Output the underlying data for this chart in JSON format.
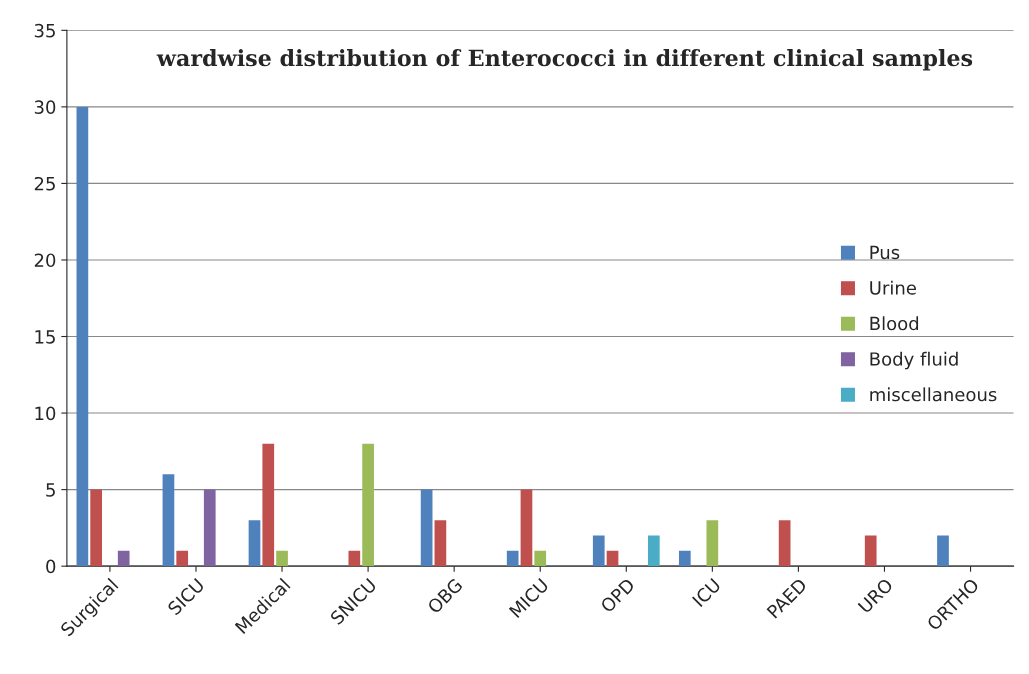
{
  "chart_data": {
    "type": "bar",
    "title": "wardwise distribution of Enterococci in different clinical samples",
    "categories": [
      "Surgical",
      "SICU",
      "Medical",
      "SNICU",
      "OBG",
      "MICU",
      "OPD",
      "ICU",
      "PAED",
      "URO",
      "ORTHO"
    ],
    "series": [
      {
        "name": "Pus",
        "color": "#4f81bd",
        "values": [
          30,
          6,
          3,
          0,
          5,
          1,
          2,
          1,
          0,
          0,
          2
        ]
      },
      {
        "name": "Urine",
        "color": "#c0504d",
        "values": [
          5,
          1,
          8,
          1,
          3,
          5,
          1,
          0,
          3,
          2,
          0
        ]
      },
      {
        "name": "Blood",
        "color": "#9bbb59",
        "values": [
          0,
          0,
          1,
          8,
          0,
          1,
          0,
          3,
          0,
          0,
          0
        ]
      },
      {
        "name": "Body fluid",
        "color": "#8064a2",
        "values": [
          1,
          5,
          0,
          0,
          0,
          0,
          0,
          0,
          0,
          0,
          0
        ]
      },
      {
        "name": "miscellaneous",
        "color": "#4bacc6",
        "values": [
          0,
          0,
          0,
          0,
          0,
          0,
          2,
          0,
          0,
          0,
          0
        ]
      }
    ],
    "ylim": [
      0,
      35
    ],
    "yticks": [
      0,
      5,
      10,
      15,
      20,
      25,
      30,
      35
    ],
    "grid": "y",
    "legend": "right"
  }
}
